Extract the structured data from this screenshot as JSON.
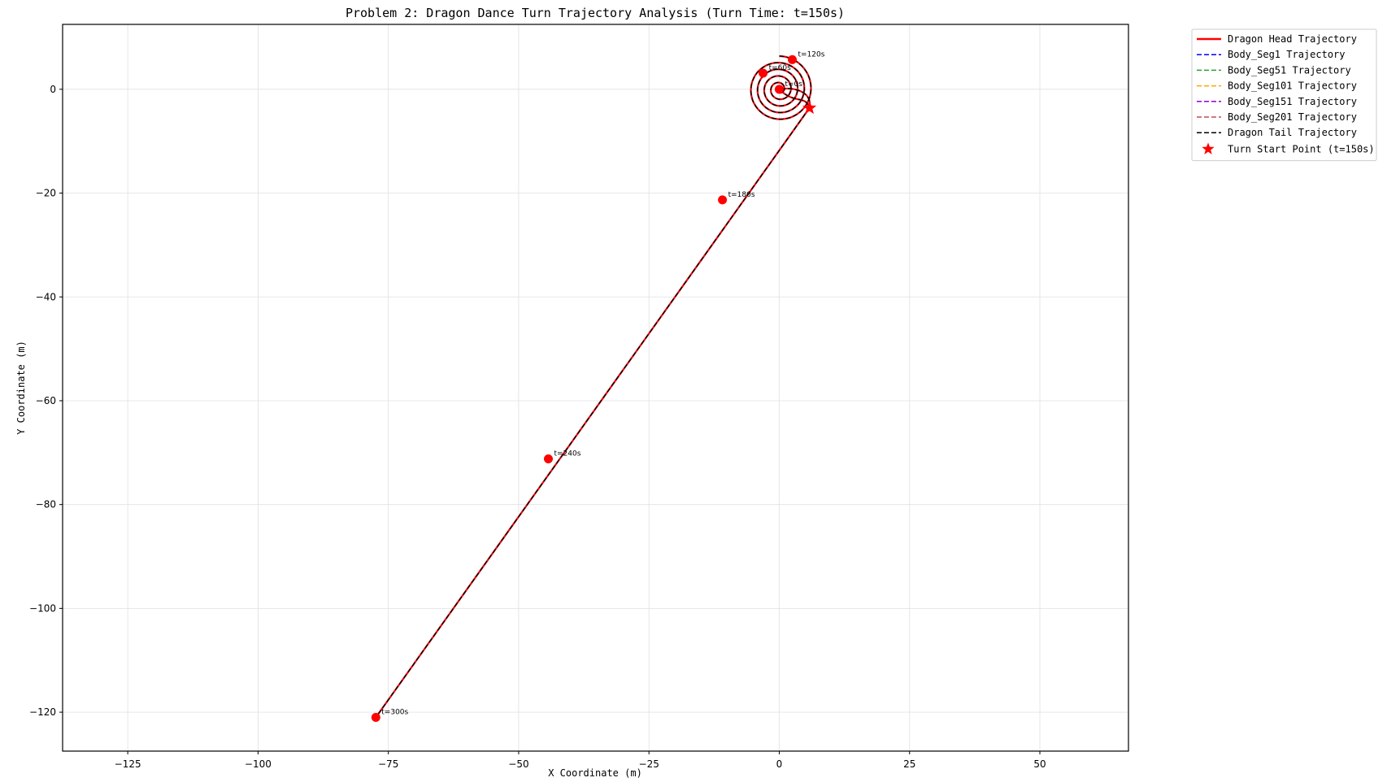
{
  "chart_data": {
    "type": "line",
    "title": "Problem 2: Dragon Dance Turn Trajectory Analysis (Turn Time: t=150s)",
    "xlabel": "X Coordinate (m)",
    "ylabel": "Y Coordinate (m)",
    "xlim": [
      -137.5,
      67
    ],
    "ylim": [
      -127.5,
      12.5
    ],
    "xticks": [
      -125,
      -100,
      -75,
      -50,
      -25,
      0,
      25,
      50
    ],
    "yticks": [
      0,
      -20,
      -40,
      -60,
      -80,
      -100,
      -120
    ],
    "grid": true,
    "legend_position": "outside-top-right",
    "spiral": {
      "center": [
        0,
        0
      ],
      "outer_radius": 6.4,
      "turns": 5,
      "loop_end": [
        5.8,
        -3.6
      ]
    },
    "line_start": [
      5.8,
      -3.6
    ],
    "line_end": [
      -77.4,
      -121
    ],
    "series": [
      {
        "name": "Dragon Head Trajectory",
        "color": "#ff0000",
        "style": "solid"
      },
      {
        "name": "Body_Seg1 Trajectory",
        "color": "#0000ff",
        "style": "dashed"
      },
      {
        "name": "Body_Seg51 Trajectory",
        "color": "#2ca02c",
        "style": "dashed"
      },
      {
        "name": "Body_Seg101 Trajectory",
        "color": "#ffa500",
        "style": "dashed"
      },
      {
        "name": "Body_Seg151 Trajectory",
        "color": "#9400d3",
        "style": "dashed"
      },
      {
        "name": "Body_Seg201 Trajectory",
        "color": "#c0504d",
        "style": "dashed"
      },
      {
        "name": "Dragon Tail Trajectory",
        "color": "#000000",
        "style": "dashed"
      }
    ],
    "turn_start": {
      "name": "Turn Start Point (t=150s)",
      "x": 5.8,
      "y": -3.6,
      "color": "#ff0000"
    },
    "markers": [
      {
        "label": "t=120s",
        "x": 2.5,
        "y": 5.7
      },
      {
        "label": "t=60s",
        "x": -3.1,
        "y": 3.1
      },
      {
        "label": "t=0s",
        "x": 0,
        "y": 0
      },
      {
        "label": "t=180s",
        "x": -10.9,
        "y": -21.3
      },
      {
        "label": "t=240s",
        "x": -44.3,
        "y": -71.2
      },
      {
        "label": "t=300s",
        "x": -77.4,
        "y": -121
      }
    ]
  }
}
